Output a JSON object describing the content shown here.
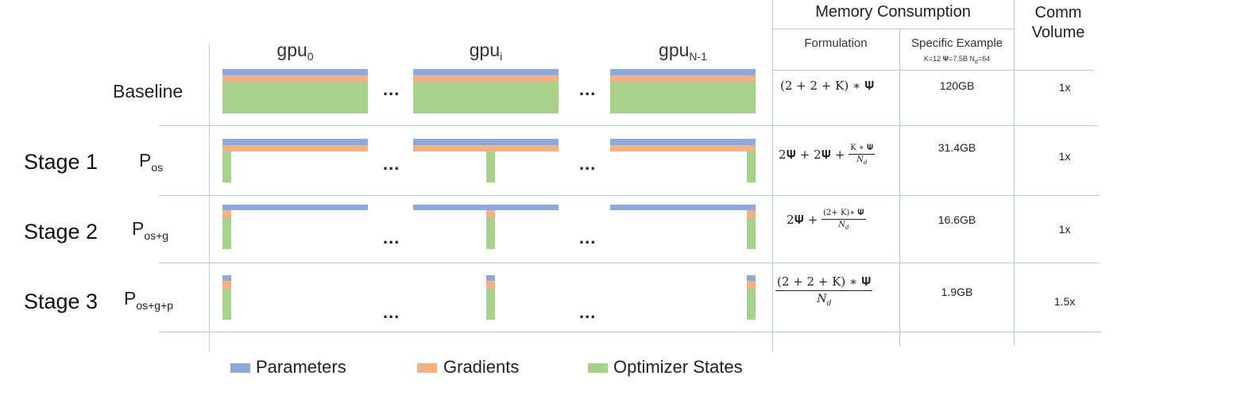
{
  "gpus": [
    {
      "base": "gpu",
      "sub": "0"
    },
    {
      "base": "gpu",
      "sub": "i"
    },
    {
      "base": "gpu",
      "sub": "N-1"
    }
  ],
  "ellipsis": "...",
  "rows": [
    {
      "stage": "",
      "label": "Baseline",
      "p_base": "",
      "p_sub": "",
      "example": "120GB",
      "comm": "1x"
    },
    {
      "stage": "Stage 1",
      "label": "",
      "p_base": "P",
      "p_sub": "os",
      "example": "31.4GB",
      "comm": "1x"
    },
    {
      "stage": "Stage 2",
      "label": "",
      "p_base": "P",
      "p_sub": "os+g",
      "example": "16.6GB",
      "comm": "1x"
    },
    {
      "stage": "Stage 3",
      "label": "",
      "p_base": "P",
      "p_sub": "os+g+p",
      "example": "1.9GB",
      "comm": "1.5x"
    }
  ],
  "formulas": {
    "baseline": "(2 + 2 + K) ∗ 𝚿",
    "stage1_prefix": "2𝚿 + 2𝚿 + ",
    "stage1_num": "K ∗ 𝚿",
    "stage1_den": "N",
    "stage1_den_sub": "d",
    "stage2_prefix": "2𝚿 + ",
    "stage2_num": "(2+ K)∗ 𝚿",
    "stage2_den": "N",
    "stage2_den_sub": "d",
    "stage3_num": "(2 +  2 +  K) ∗  𝚿",
    "stage3_den": "N",
    "stage3_den_sub": "d"
  },
  "table": {
    "memory_header": "Memory Consumption",
    "comm_header_line1": "Comm",
    "comm_header_line2": "Volume",
    "formulation_header": "Formulation",
    "example_header": "Specific Example",
    "example_params": "K=12 𝚿=7.5B N",
    "example_params_sub": "d",
    "example_params_tail": "=64"
  },
  "legend": [
    {
      "label": "Parameters",
      "color": "#8ea9db"
    },
    {
      "label": "Gradients",
      "color": "#f4b183"
    },
    {
      "label": "Optimizer States",
      "color": "#a9d18e"
    }
  ]
}
